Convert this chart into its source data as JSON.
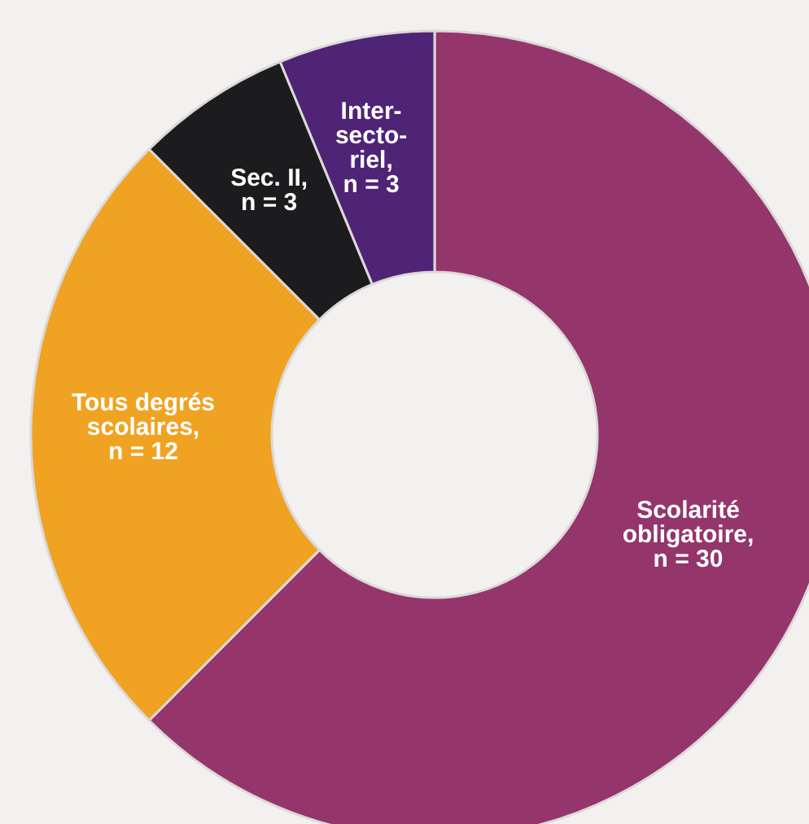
{
  "chart_data": {
    "type": "donut",
    "categories": [
      "Scolarité\nobligatoire",
      "Tous degrés\nscolaires",
      "Sec. II",
      "Inter-\nsecto-\nriel"
    ],
    "values": [
      30,
      12,
      3,
      3
    ],
    "value_labels": [
      ",\nn = 30",
      ",\nn = 12",
      ",\nn = 3",
      ",\nn = 3"
    ],
    "colors": [
      "#94356b",
      "#f0a322",
      "#1c1c1e",
      "#4f2376"
    ],
    "legend": false
  }
}
